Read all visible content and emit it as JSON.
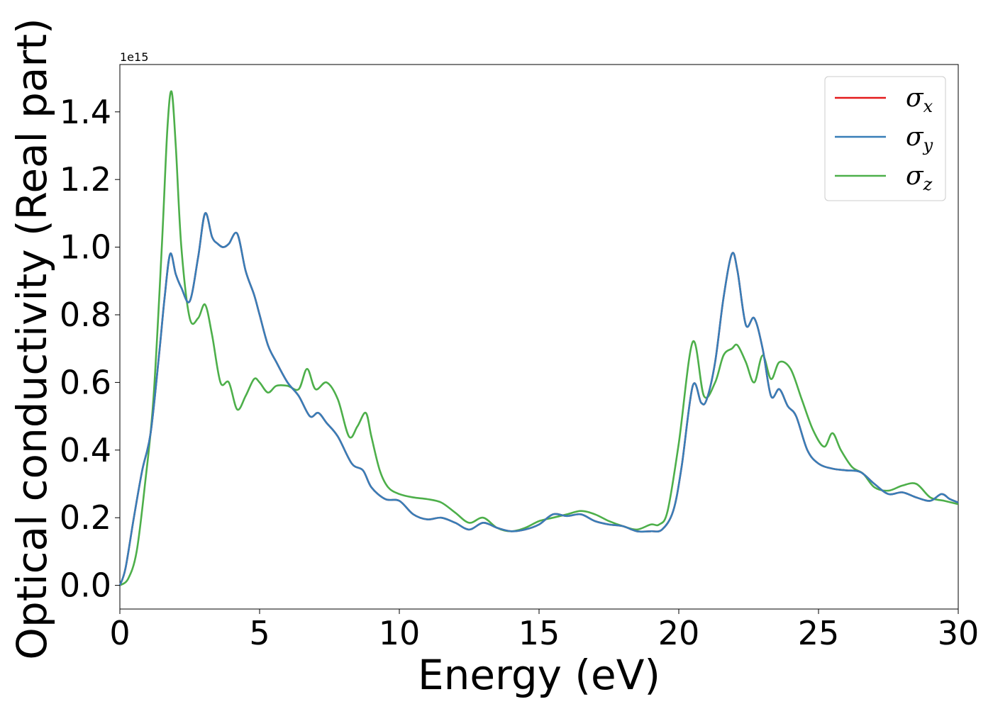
{
  "chart_data": {
    "type": "line",
    "xlabel": "Energy (eV)",
    "ylabel": "Optical conductivity (Real part)",
    "y_offset_text": "1e15",
    "y_multiplier": 1000000000000000.0,
    "xlim": [
      0,
      30
    ],
    "ylim": [
      -0.07,
      1.54
    ],
    "x_ticks": [
      0,
      5,
      10,
      15,
      20,
      25,
      30
    ],
    "x_tick_labels": [
      "0",
      "5",
      "10",
      "15",
      "20",
      "25",
      "30"
    ],
    "y_ticks": [
      0.0,
      0.2,
      0.4,
      0.6,
      0.8,
      1.0,
      1.2,
      1.4
    ],
    "y_tick_labels": [
      "0.0",
      "0.2",
      "0.4",
      "0.6",
      "0.8",
      "1.0",
      "1.2",
      "1.4"
    ],
    "grid": false,
    "legend_position": "top-right",
    "series": [
      {
        "name": "σx",
        "legend_base": "σ",
        "legend_sub": "x",
        "color": "#e41a1c",
        "x": [
          0,
          0.2,
          0.5,
          0.8,
          1.1,
          1.4,
          1.6,
          1.8,
          2.0,
          2.2,
          2.5,
          2.8,
          3.05,
          3.3,
          3.5,
          3.7,
          3.9,
          4.2,
          4.5,
          4.8,
          5.0,
          5.3,
          5.6,
          6.0,
          6.4,
          6.8,
          7.1,
          7.4,
          7.8,
          8.3,
          8.7,
          9.0,
          9.5,
          10.0,
          10.5,
          11.0,
          11.5,
          12.0,
          12.5,
          13.0,
          13.5,
          14.0,
          14.5,
          15.0,
          15.5,
          16.0,
          16.5,
          17.0,
          17.5,
          18.0,
          18.5,
          19.0,
          19.4,
          19.8,
          20.1,
          20.5,
          20.8,
          21.0,
          21.3,
          21.6,
          21.9,
          22.1,
          22.4,
          22.7,
          23.0,
          23.3,
          23.6,
          23.9,
          24.2,
          24.6,
          25.0,
          25.5,
          26.0,
          26.5,
          27.0,
          27.5,
          28.0,
          28.5,
          29.0,
          29.4,
          29.7,
          30.0
        ],
        "values": [
          0.0,
          0.05,
          0.2,
          0.34,
          0.45,
          0.68,
          0.85,
          0.98,
          0.92,
          0.88,
          0.84,
          0.97,
          1.1,
          1.03,
          1.01,
          1.0,
          1.01,
          1.04,
          0.93,
          0.86,
          0.8,
          0.71,
          0.66,
          0.6,
          0.56,
          0.5,
          0.51,
          0.48,
          0.44,
          0.36,
          0.34,
          0.29,
          0.255,
          0.25,
          0.21,
          0.195,
          0.2,
          0.185,
          0.165,
          0.185,
          0.17,
          0.16,
          0.165,
          0.18,
          0.21,
          0.205,
          0.21,
          0.19,
          0.18,
          0.175,
          0.16,
          0.16,
          0.165,
          0.22,
          0.35,
          0.59,
          0.54,
          0.55,
          0.66,
          0.85,
          0.98,
          0.93,
          0.77,
          0.79,
          0.7,
          0.56,
          0.58,
          0.53,
          0.5,
          0.4,
          0.36,
          0.345,
          0.34,
          0.335,
          0.3,
          0.27,
          0.275,
          0.26,
          0.25,
          0.27,
          0.255,
          0.245
        ]
      },
      {
        "name": "σy",
        "legend_base": "σ",
        "legend_sub": "y",
        "color": "#377eb8",
        "x": [
          0,
          0.2,
          0.5,
          0.8,
          1.1,
          1.4,
          1.6,
          1.8,
          2.0,
          2.2,
          2.5,
          2.8,
          3.05,
          3.3,
          3.5,
          3.7,
          3.9,
          4.2,
          4.5,
          4.8,
          5.0,
          5.3,
          5.6,
          6.0,
          6.4,
          6.8,
          7.1,
          7.4,
          7.8,
          8.3,
          8.7,
          9.0,
          9.5,
          10.0,
          10.5,
          11.0,
          11.5,
          12.0,
          12.5,
          13.0,
          13.5,
          14.0,
          14.5,
          15.0,
          15.5,
          16.0,
          16.5,
          17.0,
          17.5,
          18.0,
          18.5,
          19.0,
          19.4,
          19.8,
          20.1,
          20.5,
          20.8,
          21.0,
          21.3,
          21.6,
          21.9,
          22.1,
          22.4,
          22.7,
          23.0,
          23.3,
          23.6,
          23.9,
          24.2,
          24.6,
          25.0,
          25.5,
          26.0,
          26.5,
          27.0,
          27.5,
          28.0,
          28.5,
          29.0,
          29.4,
          29.7,
          30.0
        ],
        "values": [
          0.0,
          0.05,
          0.2,
          0.34,
          0.45,
          0.68,
          0.85,
          0.98,
          0.92,
          0.88,
          0.84,
          0.97,
          1.1,
          1.03,
          1.01,
          1.0,
          1.01,
          1.04,
          0.93,
          0.86,
          0.8,
          0.71,
          0.66,
          0.6,
          0.56,
          0.5,
          0.51,
          0.48,
          0.44,
          0.36,
          0.34,
          0.29,
          0.255,
          0.25,
          0.21,
          0.195,
          0.2,
          0.185,
          0.165,
          0.185,
          0.17,
          0.16,
          0.165,
          0.18,
          0.21,
          0.205,
          0.21,
          0.19,
          0.18,
          0.175,
          0.16,
          0.16,
          0.165,
          0.22,
          0.35,
          0.59,
          0.54,
          0.55,
          0.66,
          0.85,
          0.98,
          0.93,
          0.77,
          0.79,
          0.7,
          0.56,
          0.58,
          0.53,
          0.5,
          0.4,
          0.36,
          0.345,
          0.34,
          0.335,
          0.3,
          0.27,
          0.275,
          0.26,
          0.25,
          0.27,
          0.255,
          0.245
        ]
      },
      {
        "name": "σz",
        "legend_base": "σ",
        "legend_sub": "z",
        "color": "#4daf4a",
        "x": [
          0,
          0.3,
          0.6,
          0.9,
          1.2,
          1.5,
          1.7,
          1.85,
          2.0,
          2.2,
          2.5,
          2.8,
          3.05,
          3.3,
          3.6,
          3.9,
          4.2,
          4.5,
          4.8,
          5.0,
          5.3,
          5.6,
          6.0,
          6.4,
          6.7,
          7.0,
          7.4,
          7.8,
          8.2,
          8.5,
          8.8,
          9.0,
          9.3,
          9.6,
          10.0,
          10.5,
          11.0,
          11.5,
          12.0,
          12.5,
          13.0,
          13.5,
          14.0,
          14.5,
          15.0,
          15.5,
          16.0,
          16.5,
          17.0,
          17.5,
          18.0,
          18.5,
          19.0,
          19.3,
          19.6,
          20.0,
          20.5,
          20.9,
          21.3,
          21.6,
          21.9,
          22.1,
          22.4,
          22.7,
          23.0,
          23.3,
          23.6,
          24.0,
          24.4,
          24.8,
          25.2,
          25.5,
          25.8,
          26.2,
          26.6,
          27.0,
          27.5,
          28.0,
          28.5,
          29.0,
          29.5,
          30.0
        ],
        "values": [
          0.0,
          0.02,
          0.1,
          0.3,
          0.55,
          1.0,
          1.35,
          1.46,
          1.3,
          1.0,
          0.79,
          0.79,
          0.83,
          0.74,
          0.6,
          0.6,
          0.52,
          0.56,
          0.61,
          0.6,
          0.57,
          0.59,
          0.59,
          0.58,
          0.64,
          0.58,
          0.6,
          0.55,
          0.44,
          0.47,
          0.51,
          0.44,
          0.34,
          0.29,
          0.27,
          0.26,
          0.255,
          0.245,
          0.215,
          0.185,
          0.2,
          0.17,
          0.16,
          0.17,
          0.19,
          0.2,
          0.21,
          0.22,
          0.21,
          0.19,
          0.175,
          0.165,
          0.18,
          0.18,
          0.22,
          0.42,
          0.72,
          0.56,
          0.6,
          0.68,
          0.7,
          0.71,
          0.66,
          0.6,
          0.68,
          0.61,
          0.66,
          0.64,
          0.55,
          0.46,
          0.41,
          0.45,
          0.4,
          0.35,
          0.33,
          0.29,
          0.28,
          0.295,
          0.3,
          0.26,
          0.25,
          0.24
        ]
      }
    ]
  }
}
